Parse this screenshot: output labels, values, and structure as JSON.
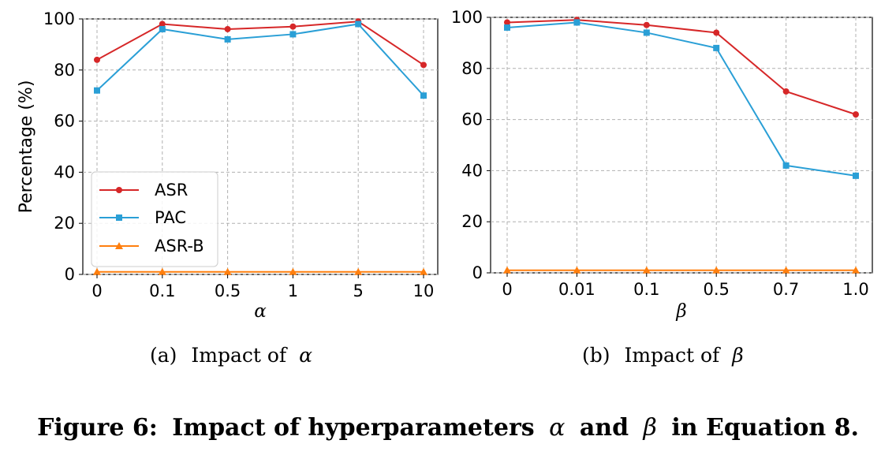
{
  "figure": {
    "label": "Figure 6:",
    "title_pre": "Impact of hyperparameters",
    "alpha_symbol": "α",
    "and_word": "and",
    "beta_symbol": "β",
    "title_post": "in Equation 8."
  },
  "colors": {
    "ASR": "#d62728",
    "PAC": "#2a9fd6",
    "ASR-B": "#ff7f0e"
  },
  "chart_data": [
    {
      "type": "line",
      "caption_label": "(a)",
      "caption_text": "Impact of",
      "caption_symbol": "α",
      "xlabel": "α",
      "ylabel": "Percentage (%)",
      "categories": [
        "0",
        "0.1",
        "0.5",
        "1",
        "5",
        "10"
      ],
      "ylim": [
        0,
        100
      ],
      "yticks": [
        0,
        20,
        40,
        60,
        80,
        100
      ],
      "grid": true,
      "legend": "lower-left",
      "series": [
        {
          "name": "ASR",
          "marker": "circle",
          "values": [
            84,
            98,
            96,
            97,
            99,
            82
          ]
        },
        {
          "name": "PAC",
          "marker": "square",
          "values": [
            72,
            96,
            92,
            94,
            98,
            70
          ]
        },
        {
          "name": "ASR-B",
          "marker": "triangle",
          "values": [
            1,
            1,
            1,
            1,
            1,
            1
          ]
        }
      ]
    },
    {
      "type": "line",
      "caption_label": "(b)",
      "caption_text": "Impact of",
      "caption_symbol": "β",
      "xlabel": "β",
      "ylabel": "",
      "categories": [
        "0",
        "0.01",
        "0.1",
        "0.5",
        "0.7",
        "1.0"
      ],
      "ylim": [
        0,
        100
      ],
      "yticks": [
        0,
        20,
        40,
        60,
        80,
        100
      ],
      "grid": true,
      "legend": "",
      "series": [
        {
          "name": "ASR",
          "marker": "circle",
          "values": [
            98,
            99,
            97,
            94,
            71,
            62
          ]
        },
        {
          "name": "PAC",
          "marker": "square",
          "values": [
            96,
            98,
            94,
            88,
            42,
            38
          ]
        },
        {
          "name": "ASR-B",
          "marker": "triangle",
          "values": [
            1,
            1,
            1,
            1,
            1,
            1
          ]
        }
      ]
    }
  ]
}
